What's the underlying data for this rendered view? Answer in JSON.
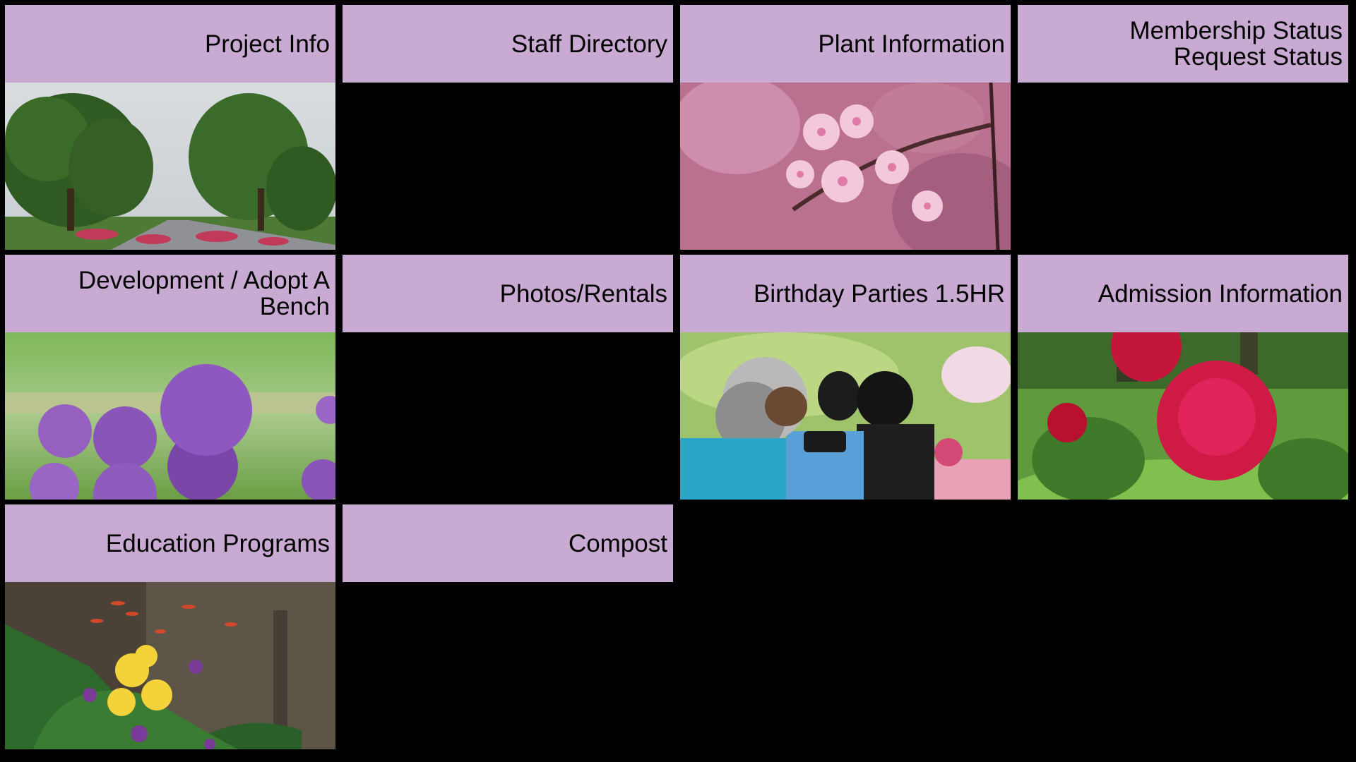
{
  "tiles": [
    {
      "label": "Project Info",
      "image": "park-trees-photo",
      "color": "#c8aad2"
    },
    {
      "label": "Staff Directory",
      "image": "",
      "color": "#c8aad2"
    },
    {
      "label": "Plant Information",
      "image": "cherry-blossom-photo",
      "color": "#c8aad2"
    },
    {
      "label": "Membership Status\nRequest Status",
      "image": "",
      "color": "#c8aad2"
    },
    {
      "label": "Development / Adopt A\nBench",
      "image": "allium-flower-photo",
      "color": "#c8aad2"
    },
    {
      "label": "Photos/Rentals",
      "image": "",
      "color": "#c8aad2"
    },
    {
      "label": "Birthday Parties 1.5HR",
      "image": "photographer-crowd-photo",
      "color": "#c8aad2"
    },
    {
      "label": "Admission Information",
      "image": "red-peony-photo",
      "color": "#c8aad2"
    },
    {
      "label": "Education Programs",
      "image": "orchid-pond-photo",
      "color": "#c8aad2"
    },
    {
      "label": "Compost",
      "image": "",
      "color": "#c8aad2"
    }
  ]
}
